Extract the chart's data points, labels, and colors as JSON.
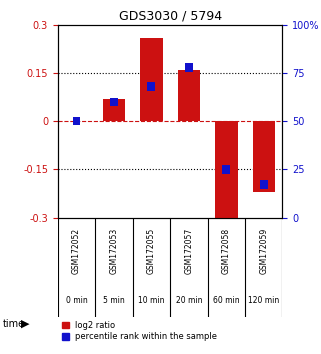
{
  "title": "GDS3030 / 5794",
  "samples": [
    "GSM172052",
    "GSM172053",
    "GSM172055",
    "GSM172057",
    "GSM172058",
    "GSM172059"
  ],
  "time_labels": [
    "0 min",
    "5 min",
    "10 min",
    "20 min",
    "60 min",
    "120 min"
  ],
  "log2_ratio": [
    0.0,
    0.07,
    0.26,
    0.16,
    -0.305,
    -0.22
  ],
  "percentile": [
    50.0,
    60.0,
    68.0,
    78.0,
    25.0,
    17.0
  ],
  "bar_width": 0.6,
  "ylim": [
    -0.3,
    0.3
  ],
  "ylim2": [
    0,
    100
  ],
  "yticks_left": [
    -0.3,
    -0.15,
    0,
    0.15,
    0.3
  ],
  "yticks_right": [
    0,
    25,
    50,
    75,
    100
  ],
  "hlines_black": [
    0.15,
    -0.15
  ],
  "hline_red": 0.0,
  "red_color": "#cc1111",
  "blue_color": "#1111cc",
  "plot_bg": "#ffffff",
  "sample_bg": "#cccccc",
  "time_bg": "#99ee99",
  "legend_red_label": "log2 ratio",
  "legend_blue_label": "percentile rank within the sample"
}
